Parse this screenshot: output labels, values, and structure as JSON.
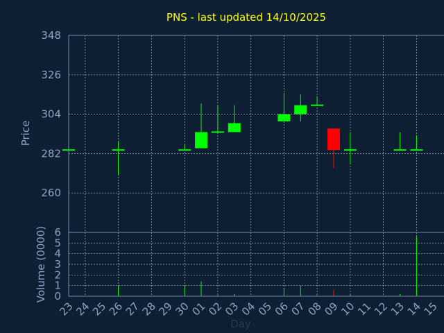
{
  "chart_data": {
    "type": "candlestick",
    "title": "PNS - last updated 14/10/2025",
    "xlabel": "Day",
    "price_panel": {
      "ylabel": "Price",
      "ylim": [
        238,
        348
      ],
      "yticks": [
        260,
        282,
        304,
        326,
        348
      ],
      "grid": true
    },
    "volume_panel": {
      "ylabel": "Volume (0000)",
      "ylim": [
        0,
        6
      ],
      "yticks": [
        0,
        1,
        2,
        3,
        4,
        5,
        6
      ],
      "grid": true
    },
    "x_tick_labels": [
      "23",
      "24",
      "25",
      "26",
      "27",
      "28",
      "29",
      "30",
      "01",
      "02",
      "03",
      "04",
      "05",
      "06",
      "07",
      "08",
      "09",
      "10",
      "11",
      "12",
      "13",
      "14",
      "15"
    ],
    "colors": {
      "up": "#00ff00",
      "down": "#ff0000",
      "title": "#ffff00",
      "axis_text": "#8aa4c4",
      "background": "#0f1f33"
    },
    "candles": [
      {
        "day": "23",
        "open": 284,
        "high": 284,
        "low": 284,
        "close": 284,
        "volume": 0
      },
      {
        "day": "26",
        "open": 284,
        "high": 289,
        "low": 270,
        "close": 284,
        "volume": 1.0
      },
      {
        "day": "30",
        "open": 284,
        "high": 287,
        "low": 284,
        "close": 284,
        "volume": 1.0
      },
      {
        "day": "01",
        "open": 285,
        "high": 310,
        "low": 285,
        "close": 294,
        "volume": 1.4
      },
      {
        "day": "02",
        "open": 294,
        "high": 309,
        "low": 294,
        "close": 294,
        "volume": 0.1
      },
      {
        "day": "03",
        "open": 294,
        "high": 309,
        "low": 294,
        "close": 299,
        "volume": 0.2
      },
      {
        "day": "06",
        "open": 300,
        "high": 316,
        "low": 300,
        "close": 304,
        "volume": 0.8
      },
      {
        "day": "07",
        "open": 304,
        "high": 315,
        "low": 300,
        "close": 309,
        "volume": 1.0
      },
      {
        "day": "08",
        "open": 309,
        "high": 314,
        "low": 309,
        "close": 309,
        "volume": 0.1
      },
      {
        "day": "09",
        "open": 296,
        "high": 296,
        "low": 274,
        "close": 284,
        "volume": 0.6
      },
      {
        "day": "10",
        "open": 284,
        "high": 294,
        "low": 276,
        "close": 284,
        "volume": 0.2
      },
      {
        "day": "13",
        "open": 284,
        "high": 294,
        "low": 284,
        "close": 284,
        "volume": 0.2
      },
      {
        "day": "14",
        "open": 284,
        "high": 292,
        "low": 284,
        "close": 284,
        "volume": 5.6
      }
    ]
  }
}
